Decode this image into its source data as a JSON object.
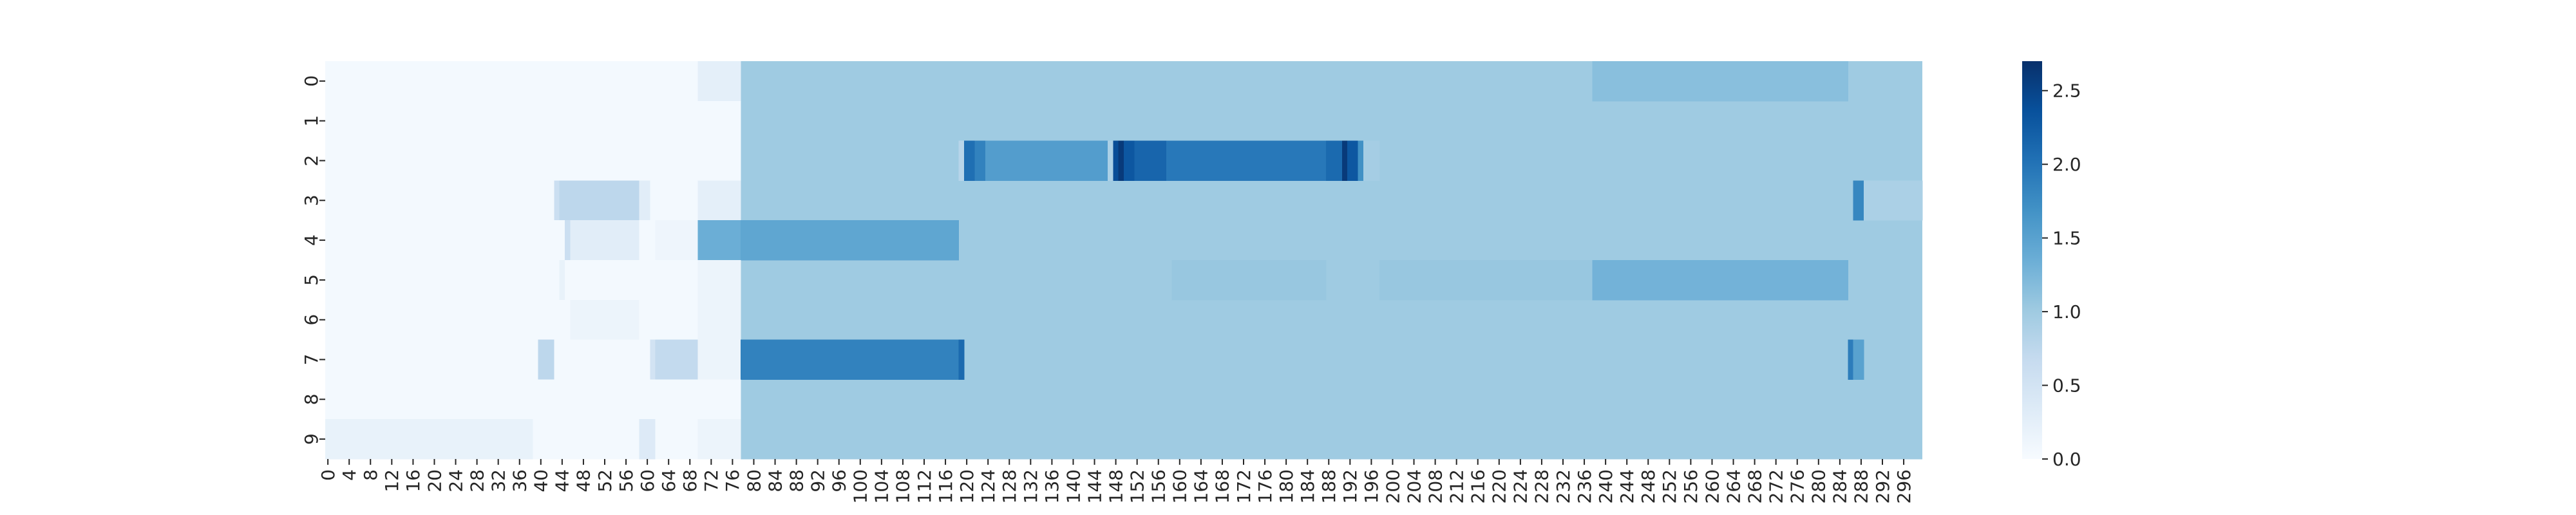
{
  "chart_data": {
    "type": "heatmap",
    "title": "",
    "xlabel": "",
    "ylabel": "",
    "n_cols": 300,
    "rows": [
      "0",
      "1",
      "2",
      "3",
      "4",
      "5",
      "6",
      "7",
      "8",
      "9"
    ],
    "x_tick_step": 4,
    "x_tick_labels": [
      "0",
      "4",
      "8",
      "12",
      "16",
      "20",
      "24",
      "28",
      "32",
      "36",
      "40",
      "44",
      "48",
      "52",
      "56",
      "60",
      "64",
      "68",
      "72",
      "76",
      "80",
      "84",
      "88",
      "92",
      "96",
      "100",
      "104",
      "108",
      "112",
      "116",
      "120",
      "124",
      "128",
      "132",
      "136",
      "140",
      "144",
      "148",
      "152",
      "156",
      "160",
      "164",
      "168",
      "172",
      "176",
      "180",
      "184",
      "188",
      "192",
      "196",
      "200",
      "204",
      "208",
      "212",
      "216",
      "220",
      "224",
      "228",
      "232",
      "236",
      "240",
      "244",
      "248",
      "252",
      "256",
      "260",
      "264",
      "268",
      "272",
      "276",
      "280",
      "284",
      "288",
      "292",
      "296"
    ],
    "colormap": "Blues",
    "colorbar": {
      "min": 0.0,
      "max": 2.7,
      "ticks": [
        0.0,
        0.5,
        1.0,
        1.5,
        2.0,
        2.5
      ],
      "tick_labels": [
        "0.0",
        "0.5",
        "1.0",
        "1.5",
        "2.0",
        "2.5"
      ]
    },
    "background_value": 1.0,
    "segments": [
      {
        "row": 0,
        "from": 0,
        "to": 70,
        "value": 0.05
      },
      {
        "row": 0,
        "from": 70,
        "to": 78,
        "value": 0.25
      },
      {
        "row": 0,
        "from": 238,
        "to": 286,
        "value": 1.15
      },
      {
        "row": 1,
        "from": 0,
        "to": 78,
        "value": 0.05
      },
      {
        "row": 2,
        "from": 0,
        "to": 78,
        "value": 0.05
      },
      {
        "row": 2,
        "from": 119,
        "to": 120,
        "value": 0.8
      },
      {
        "row": 2,
        "from": 120,
        "to": 122,
        "value": 2.05
      },
      {
        "row": 2,
        "from": 122,
        "to": 124,
        "value": 1.85
      },
      {
        "row": 2,
        "from": 124,
        "to": 147,
        "value": 1.55
      },
      {
        "row": 2,
        "from": 147,
        "to": 148,
        "value": 0.9
      },
      {
        "row": 2,
        "from": 148,
        "to": 149,
        "value": 2.4
      },
      {
        "row": 2,
        "from": 149,
        "to": 150,
        "value": 2.6
      },
      {
        "row": 2,
        "from": 150,
        "to": 152,
        "value": 2.3
      },
      {
        "row": 2,
        "from": 152,
        "to": 158,
        "value": 2.15
      },
      {
        "row": 2,
        "from": 158,
        "to": 188,
        "value": 1.95
      },
      {
        "row": 2,
        "from": 188,
        "to": 191,
        "value": 2.1
      },
      {
        "row": 2,
        "from": 191,
        "to": 192,
        "value": 2.6
      },
      {
        "row": 2,
        "from": 192,
        "to": 194,
        "value": 2.3
      },
      {
        "row": 2,
        "from": 194,
        "to": 195,
        "value": 1.7
      },
      {
        "row": 2,
        "from": 195,
        "to": 198,
        "value": 0.95
      },
      {
        "row": 3,
        "from": 0,
        "to": 43,
        "value": 0.05
      },
      {
        "row": 3,
        "from": 43,
        "to": 44,
        "value": 0.6
      },
      {
        "row": 3,
        "from": 44,
        "to": 59,
        "value": 0.75
      },
      {
        "row": 3,
        "from": 59,
        "to": 61,
        "value": 0.3
      },
      {
        "row": 3,
        "from": 61,
        "to": 70,
        "value": 0.05
      },
      {
        "row": 3,
        "from": 70,
        "to": 78,
        "value": 0.25
      },
      {
        "row": 3,
        "from": 287,
        "to": 289,
        "value": 1.8
      },
      {
        "row": 3,
        "from": 289,
        "to": 300,
        "value": 0.9
      },
      {
        "row": 4,
        "from": 0,
        "to": 45,
        "value": 0.05
      },
      {
        "row": 4,
        "from": 45,
        "to": 46,
        "value": 0.6
      },
      {
        "row": 4,
        "from": 46,
        "to": 59,
        "value": 0.3
      },
      {
        "row": 4,
        "from": 59,
        "to": 62,
        "value": 0.05
      },
      {
        "row": 4,
        "from": 62,
        "to": 70,
        "value": 0.12
      },
      {
        "row": 4,
        "from": 70,
        "to": 78,
        "value": 1.35
      },
      {
        "row": 4,
        "from": 78,
        "to": 119,
        "value": 1.45
      },
      {
        "row": 5,
        "from": 0,
        "to": 44,
        "value": 0.05
      },
      {
        "row": 5,
        "from": 44,
        "to": 45,
        "value": 0.2
      },
      {
        "row": 5,
        "from": 45,
        "to": 70,
        "value": 0.05
      },
      {
        "row": 5,
        "from": 70,
        "to": 78,
        "value": 0.15
      },
      {
        "row": 5,
        "from": 159,
        "to": 188,
        "value": 1.05
      },
      {
        "row": 5,
        "from": 198,
        "to": 238,
        "value": 1.05
      },
      {
        "row": 5,
        "from": 238,
        "to": 286,
        "value": 1.3
      },
      {
        "row": 6,
        "from": 0,
        "to": 46,
        "value": 0.05
      },
      {
        "row": 6,
        "from": 46,
        "to": 59,
        "value": 0.15
      },
      {
        "row": 6,
        "from": 59,
        "to": 70,
        "value": 0.05
      },
      {
        "row": 6,
        "from": 70,
        "to": 78,
        "value": 0.15
      },
      {
        "row": 7,
        "from": 0,
        "to": 40,
        "value": 0.05
      },
      {
        "row": 7,
        "from": 40,
        "to": 43,
        "value": 0.75
      },
      {
        "row": 7,
        "from": 43,
        "to": 61,
        "value": 0.05
      },
      {
        "row": 7,
        "from": 61,
        "to": 62,
        "value": 0.5
      },
      {
        "row": 7,
        "from": 62,
        "to": 70,
        "value": 0.7
      },
      {
        "row": 7,
        "from": 70,
        "to": 78,
        "value": 0.15
      },
      {
        "row": 7,
        "from": 78,
        "to": 119,
        "value": 1.85
      },
      {
        "row": 7,
        "from": 119,
        "to": 120,
        "value": 2.1
      },
      {
        "row": 7,
        "from": 286,
        "to": 287,
        "value": 1.9
      },
      {
        "row": 7,
        "from": 287,
        "to": 289,
        "value": 1.5
      },
      {
        "row": 8,
        "from": 0,
        "to": 78,
        "value": 0.05
      },
      {
        "row": 9,
        "from": 0,
        "to": 39,
        "value": 0.2
      },
      {
        "row": 9,
        "from": 39,
        "to": 59,
        "value": 0.05
      },
      {
        "row": 9,
        "from": 59,
        "to": 62,
        "value": 0.35
      },
      {
        "row": 9,
        "from": 62,
        "to": 70,
        "value": 0.05
      },
      {
        "row": 9,
        "from": 70,
        "to": 78,
        "value": 0.15
      }
    ]
  }
}
